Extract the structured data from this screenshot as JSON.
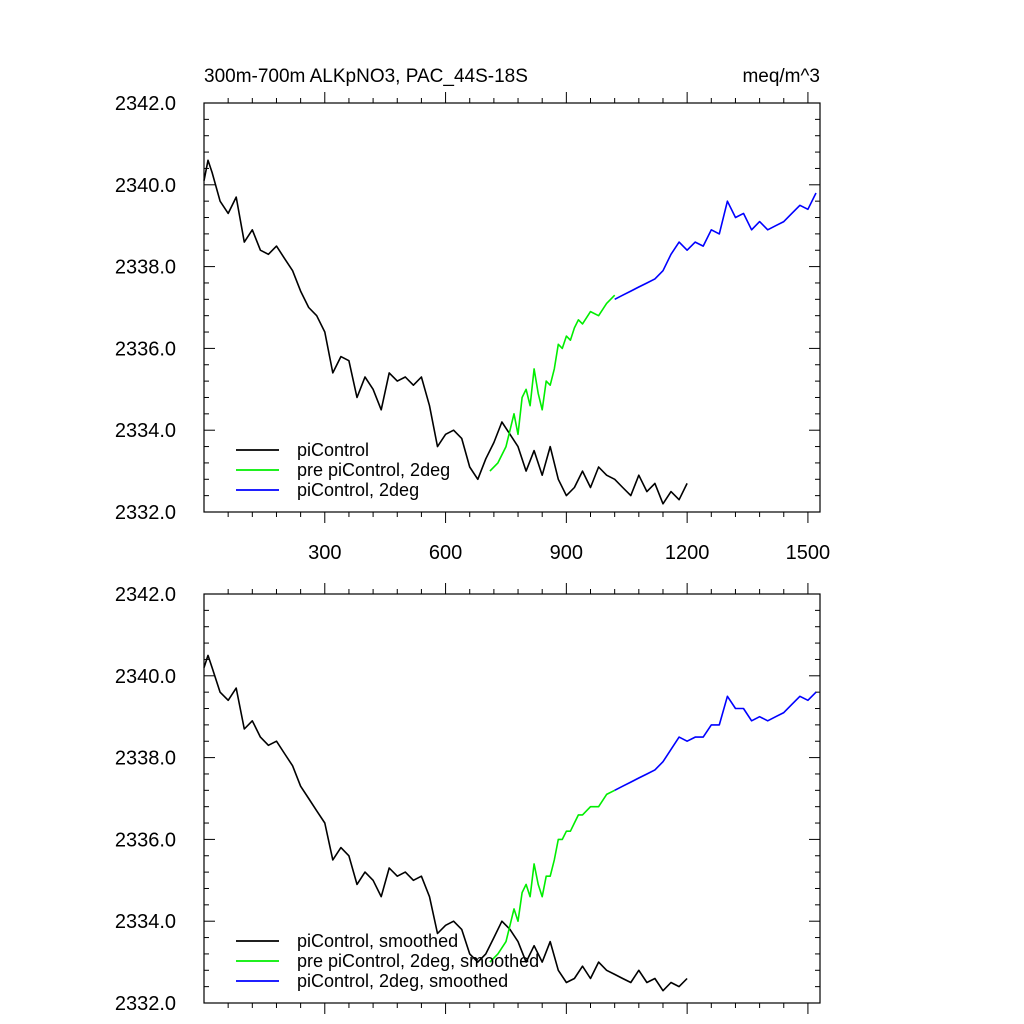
{
  "chart_data": [
    {
      "type": "line",
      "title": "300m-700m ALKpNO3, PAC_44S-18S",
      "units": "meq/m^3",
      "xlim": [
        0,
        1530
      ],
      "ylim": [
        2332.0,
        2342.0
      ],
      "y_ticks": [
        "2332.0",
        "2334.0",
        "2336.0",
        "2338.0",
        "2340.0",
        "2342.0"
      ],
      "x_ticks": [
        "300",
        "600",
        "900",
        "1200",
        "1500"
      ],
      "legend_position": "bottom-left",
      "series": [
        {
          "name": "piControl",
          "color": "#000000",
          "x": [
            0,
            10,
            20,
            40,
            60,
            80,
            100,
            120,
            140,
            160,
            180,
            200,
            220,
            240,
            260,
            280,
            300,
            320,
            340,
            360,
            380,
            400,
            420,
            440,
            460,
            480,
            500,
            520,
            540,
            560,
            580,
            600,
            620,
            640,
            660,
            680,
            700,
            720,
            740,
            760,
            780,
            800,
            820,
            840,
            860,
            880,
            900,
            920,
            940,
            960,
            980,
            1000,
            1020,
            1040,
            1060,
            1080,
            1100,
            1120,
            1140,
            1160,
            1180,
            1200
          ],
          "y": [
            2340.1,
            2340.6,
            2340.3,
            2339.6,
            2339.3,
            2339.7,
            2338.6,
            2338.9,
            2338.4,
            2338.3,
            2338.5,
            2338.2,
            2337.9,
            2337.4,
            2337.0,
            2336.8,
            2336.4,
            2335.4,
            2335.8,
            2335.7,
            2334.8,
            2335.3,
            2335.0,
            2334.5,
            2335.4,
            2335.2,
            2335.3,
            2335.1,
            2335.3,
            2334.6,
            2333.6,
            2333.9,
            2334.0,
            2333.8,
            2333.1,
            2332.8,
            2333.3,
            2333.7,
            2334.2,
            2333.9,
            2333.6,
            2333.0,
            2333.5,
            2332.9,
            2333.6,
            2332.8,
            2332.4,
            2332.6,
            2333.0,
            2332.6,
            2333.1,
            2332.9,
            2332.8,
            2332.6,
            2332.4,
            2332.9,
            2332.5,
            2332.7,
            2332.2,
            2332.5,
            2332.3,
            2332.7
          ]
        },
        {
          "name": "pre piControl, 2deg",
          "color": "#00ee00",
          "x": [
            710,
            730,
            750,
            760,
            770,
            780,
            790,
            800,
            810,
            820,
            830,
            840,
            850,
            860,
            870,
            880,
            890,
            900,
            910,
            920,
            930,
            940,
            960,
            980,
            1000,
            1020
          ],
          "y": [
            2333.0,
            2333.2,
            2333.6,
            2334.0,
            2334.4,
            2333.9,
            2334.8,
            2335.0,
            2334.6,
            2335.5,
            2334.9,
            2334.5,
            2335.2,
            2335.1,
            2335.5,
            2336.1,
            2336.0,
            2336.3,
            2336.2,
            2336.5,
            2336.7,
            2336.6,
            2336.9,
            2336.8,
            2337.1,
            2337.3
          ]
        },
        {
          "name": "piControl, 2deg",
          "color": "#0000ff",
          "x": [
            1020,
            1040,
            1060,
            1080,
            1100,
            1120,
            1140,
            1160,
            1180,
            1200,
            1220,
            1240,
            1260,
            1280,
            1300,
            1320,
            1340,
            1360,
            1380,
            1400,
            1420,
            1440,
            1460,
            1480,
            1500,
            1520
          ],
          "y": [
            2337.2,
            2337.3,
            2337.4,
            2337.5,
            2337.6,
            2337.7,
            2337.9,
            2338.3,
            2338.6,
            2338.4,
            2338.6,
            2338.5,
            2338.9,
            2338.8,
            2339.6,
            2339.2,
            2339.3,
            2338.9,
            2339.1,
            2338.9,
            2339.0,
            2339.1,
            2339.3,
            2339.5,
            2339.4,
            2339.8
          ]
        }
      ]
    },
    {
      "type": "line",
      "xlim": [
        0,
        1530
      ],
      "ylim": [
        2332.0,
        2342.0
      ],
      "y_ticks": [
        "2332.0",
        "2334.0",
        "2336.0",
        "2338.0",
        "2340.0",
        "2342.0"
      ],
      "legend_position": "bottom-left",
      "series": [
        {
          "name": "piControl, smoothed",
          "color": "#000000",
          "x": [
            0,
            10,
            20,
            40,
            60,
            80,
            100,
            120,
            140,
            160,
            180,
            200,
            220,
            240,
            260,
            280,
            300,
            320,
            340,
            360,
            380,
            400,
            420,
            440,
            460,
            480,
            500,
            520,
            540,
            560,
            580,
            600,
            620,
            640,
            660,
            680,
            700,
            720,
            740,
            760,
            780,
            800,
            820,
            840,
            860,
            880,
            900,
            920,
            940,
            960,
            980,
            1000,
            1020,
            1040,
            1060,
            1080,
            1100,
            1120,
            1140,
            1160,
            1180,
            1200
          ],
          "y": [
            2340.2,
            2340.5,
            2340.2,
            2339.6,
            2339.4,
            2339.7,
            2338.7,
            2338.9,
            2338.5,
            2338.3,
            2338.4,
            2338.1,
            2337.8,
            2337.3,
            2337.0,
            2336.7,
            2336.4,
            2335.5,
            2335.8,
            2335.6,
            2334.9,
            2335.2,
            2335.0,
            2334.6,
            2335.3,
            2335.1,
            2335.2,
            2335.0,
            2335.1,
            2334.6,
            2333.7,
            2333.9,
            2334.0,
            2333.8,
            2333.2,
            2333.0,
            2333.2,
            2333.6,
            2334.0,
            2333.8,
            2333.5,
            2333.0,
            2333.4,
            2333.0,
            2333.5,
            2332.8,
            2332.5,
            2332.6,
            2332.9,
            2332.6,
            2333.0,
            2332.8,
            2332.7,
            2332.6,
            2332.5,
            2332.8,
            2332.5,
            2332.6,
            2332.3,
            2332.5,
            2332.4,
            2332.6
          ]
        },
        {
          "name": "pre piControl, 2deg, smoothed",
          "color": "#00ee00",
          "x": [
            710,
            730,
            750,
            760,
            770,
            780,
            790,
            800,
            810,
            820,
            830,
            840,
            850,
            860,
            870,
            880,
            890,
            900,
            910,
            920,
            930,
            940,
            960,
            980,
            1000,
            1020
          ],
          "y": [
            2333.0,
            2333.2,
            2333.5,
            2333.9,
            2334.3,
            2334.0,
            2334.7,
            2334.9,
            2334.6,
            2335.4,
            2334.9,
            2334.6,
            2335.1,
            2335.1,
            2335.5,
            2336.0,
            2336.0,
            2336.2,
            2336.2,
            2336.4,
            2336.6,
            2336.6,
            2336.8,
            2336.8,
            2337.1,
            2337.2
          ]
        },
        {
          "name": "piControl, 2deg, smoothed",
          "color": "#0000ff",
          "x": [
            1020,
            1040,
            1060,
            1080,
            1100,
            1120,
            1140,
            1160,
            1180,
            1200,
            1220,
            1240,
            1260,
            1280,
            1300,
            1320,
            1340,
            1360,
            1380,
            1400,
            1420,
            1440,
            1460,
            1480,
            1500,
            1520
          ],
          "y": [
            2337.2,
            2337.3,
            2337.4,
            2337.5,
            2337.6,
            2337.7,
            2337.9,
            2338.2,
            2338.5,
            2338.4,
            2338.5,
            2338.5,
            2338.8,
            2338.8,
            2339.5,
            2339.2,
            2339.2,
            2338.9,
            2339.0,
            2338.9,
            2339.0,
            2339.1,
            2339.3,
            2339.5,
            2339.4,
            2339.6
          ]
        }
      ]
    }
  ]
}
